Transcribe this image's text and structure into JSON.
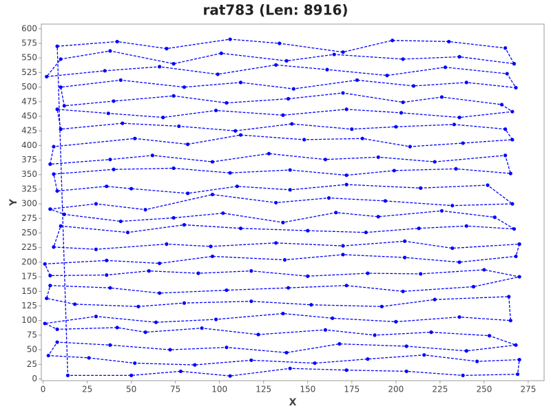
{
  "chart_data": {
    "type": "tour",
    "title": "rat783 (Len: 8916)",
    "x_label": "X",
    "y_label": "Y",
    "color": "#0000ff",
    "grid": false,
    "xlim": [
      -1,
      284
    ],
    "ylim": [
      -3,
      608
    ],
    "xticks": [
      0,
      25,
      50,
      75,
      100,
      125,
      150,
      175,
      200,
      225,
      250,
      275
    ],
    "yticks": [
      0,
      25,
      50,
      75,
      100,
      125,
      150,
      175,
      200,
      225,
      250,
      275,
      300,
      325,
      350,
      375,
      400,
      425,
      450,
      475,
      500,
      525,
      550,
      575,
      600
    ],
    "x": [
      8,
      42,
      70,
      106,
      134,
      170,
      198,
      230,
      262,
      267,
      236,
      204,
      165,
      138,
      101,
      74,
      38,
      10,
      2,
      35,
      66,
      99,
      132,
      161,
      195,
      228,
      263,
      268,
      240,
      210,
      178,
      142,
      112,
      80,
      44,
      10,
      12,
      40,
      74,
      104,
      139,
      170,
      204,
      226,
      260,
      266,
      236,
      203,
      172,
      136,
      98,
      68,
      37,
      8,
      10,
      45,
      77,
      109,
      141,
      175,
      200,
      233,
      262,
      266,
      238,
      208,
      181,
      148,
      112,
      82,
      52,
      6,
      4,
      38,
      62,
      96,
      128,
      160,
      190,
      222,
      262,
      265,
      234,
      199,
      172,
      140,
      106,
      74,
      40,
      6,
      8,
      36,
      50,
      82,
      110,
      140,
      172,
      214,
      252,
      266,
      232,
      194,
      162,
      132,
      96,
      58,
      30,
      4,
      12,
      44,
      74,
      102,
      136,
      166,
      190,
      226,
      256,
      267,
      240,
      213,
      183,
      150,
      112,
      80,
      48,
      10,
      6,
      30,
      70,
      95,
      132,
      170,
      205,
      232,
      270,
      268,
      236,
      205,
      170,
      137,
      96,
      66,
      36,
      1,
      4,
      36,
      60,
      88,
      118,
      150,
      184,
      214,
      250,
      270,
      244,
      204,
      172,
      139,
      104,
      66,
      38,
      4,
      2,
      18,
      54,
      80,
      118,
      152,
      192,
      222,
      264,
      265,
      236,
      200,
      164,
      136,
      98,
      64,
      30,
      1,
      8,
      42,
      58,
      90,
      122,
      160,
      188,
      220,
      253,
      268,
      240,
      206,
      168,
      138,
      104,
      72,
      38,
      8,
      3,
      26,
      52,
      86,
      118,
      154,
      184,
      216,
      246,
      270,
      269,
      238,
      206,
      172,
      140,
      106,
      78,
      50,
      14
    ],
    "values": [
      570,
      578,
      566,
      582,
      575,
      560,
      580,
      578,
      567,
      540,
      552,
      548,
      556,
      545,
      558,
      540,
      562,
      548,
      518,
      528,
      535,
      522,
      538,
      530,
      520,
      534,
      523,
      499,
      508,
      502,
      512,
      497,
      508,
      500,
      512,
      500,
      468,
      476,
      485,
      473,
      480,
      490,
      474,
      483,
      470,
      458,
      448,
      456,
      462,
      452,
      460,
      448,
      455,
      462,
      428,
      438,
      433,
      425,
      437,
      428,
      432,
      436,
      428,
      410,
      404,
      398,
      412,
      410,
      418,
      402,
      412,
      398,
      368,
      376,
      383,
      372,
      386,
      376,
      380,
      372,
      383,
      352,
      360,
      357,
      349,
      358,
      353,
      361,
      359,
      351,
      322,
      330,
      326,
      318,
      330,
      324,
      333,
      327,
      332,
      300,
      297,
      305,
      310,
      302,
      316,
      290,
      300,
      291,
      282,
      270,
      276,
      284,
      268,
      285,
      278,
      288,
      277,
      257,
      262,
      258,
      251,
      254,
      258,
      264,
      251,
      262,
      226,
      222,
      231,
      227,
      233,
      228,
      236,
      224,
      231,
      210,
      200,
      208,
      213,
      204,
      210,
      198,
      203,
      197,
      177,
      178,
      185,
      181,
      185,
      176,
      181,
      180,
      187,
      175,
      158,
      150,
      160,
      156,
      152,
      147,
      156,
      160,
      138,
      128,
      124,
      130,
      133,
      127,
      124,
      136,
      141,
      100,
      106,
      98,
      104,
      112,
      102,
      97,
      107,
      95,
      85,
      88,
      80,
      87,
      76,
      84,
      75,
      80,
      74,
      58,
      48,
      56,
      60,
      45,
      54,
      50,
      58,
      63,
      40,
      36,
      27,
      24,
      32,
      27,
      34,
      41,
      30,
      33,
      8,
      6,
      13,
      15,
      18,
      5,
      13,
      6,
      6
    ]
  }
}
